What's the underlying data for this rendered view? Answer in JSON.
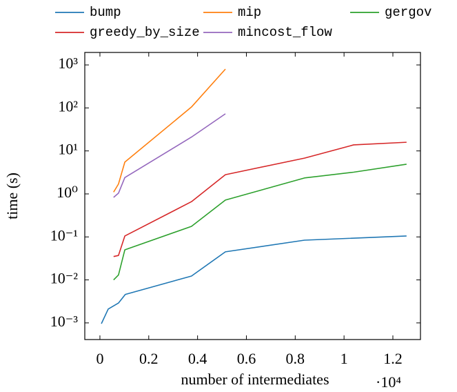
{
  "chart_data": {
    "type": "line",
    "xlabel": "number of intermediates",
    "x_scale_label": "·10⁴",
    "ylabel": "time (s)",
    "log_y": true,
    "legend_position": "top",
    "xlim": [
      -0.062,
      1.313
    ],
    "xticks": [
      0,
      0.2,
      0.4,
      0.6,
      0.8,
      1,
      1.2
    ],
    "ylim": [
      0.00041,
      1950
    ],
    "yticks": [
      {
        "value": 0.001,
        "label": "10⁻³"
      },
      {
        "value": 0.01,
        "label": "10⁻²"
      },
      {
        "value": 0.1,
        "label": "10⁻¹"
      },
      {
        "value": 1,
        "label": "10⁰"
      },
      {
        "value": 10,
        "label": "10¹"
      },
      {
        "value": 100,
        "label": "10²"
      },
      {
        "value": 1000,
        "label": "10³"
      }
    ],
    "series": [
      {
        "name": "bump",
        "color": "#1f77b4",
        "x": [
          0.006,
          0.034,
          0.076,
          0.104,
          0.375,
          0.514,
          0.838,
          1.256
        ],
        "values": [
          0.00096,
          0.0021,
          0.0029,
          0.0046,
          0.0123,
          0.045,
          0.084,
          0.105
        ]
      },
      {
        "name": "mip",
        "color": "#ff7f0e",
        "x": [
          0.056,
          0.076,
          0.102,
          0.375,
          0.514
        ],
        "values": [
          1.1,
          1.7,
          5.5,
          105,
          800
        ]
      },
      {
        "name": "gergov",
        "color": "#2ca02c",
        "x": [
          0.056,
          0.076,
          0.102,
          0.375,
          0.514,
          0.838,
          1.039,
          1.256
        ],
        "values": [
          0.01,
          0.013,
          0.05,
          0.176,
          0.72,
          2.35,
          3.2,
          4.9
        ]
      },
      {
        "name": "greedy_by_size",
        "color": "#d62728",
        "x": [
          0.056,
          0.076,
          0.102,
          0.375,
          0.514,
          0.838,
          1.039,
          1.256
        ],
        "values": [
          0.035,
          0.037,
          0.105,
          0.66,
          2.8,
          6.8,
          13.8,
          15.9
        ]
      },
      {
        "name": "mincost_flow",
        "color": "#9467bd",
        "x": [
          0.056,
          0.076,
          0.102,
          0.375,
          0.514
        ],
        "values": [
          0.83,
          1.04,
          2.4,
          21,
          73
        ]
      }
    ]
  }
}
